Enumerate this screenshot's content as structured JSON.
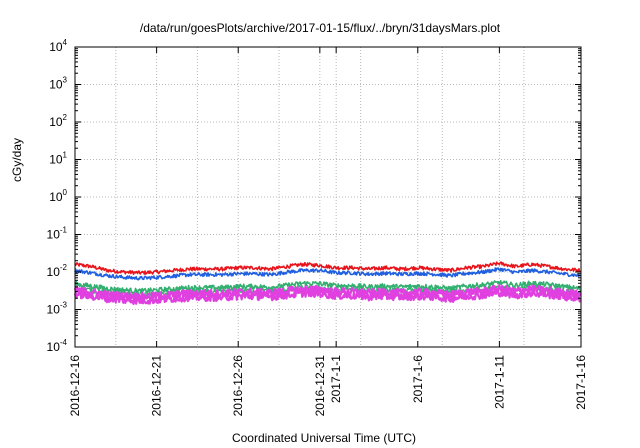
{
  "chart_data": {
    "type": "line",
    "title": "/data/run/goesPlots/archive/2017-01-15/flux/../bryn/31daysMars.plot",
    "xlabel": "Coordinated Universal Time (UTC)",
    "ylabel": "cGy/day",
    "y_scale": "log",
    "ylim": [
      0.0001,
      10000
    ],
    "y_ticks": [
      {
        "value": 0.0001,
        "base": "10",
        "exp": "-4"
      },
      {
        "value": 0.001,
        "base": "10",
        "exp": "-3"
      },
      {
        "value": 0.01,
        "base": "10",
        "exp": "-2"
      },
      {
        "value": 0.1,
        "base": "10",
        "exp": "-1"
      },
      {
        "value": 1,
        "base": "10",
        "exp": "0"
      },
      {
        "value": 10,
        "base": "10",
        "exp": "1"
      },
      {
        "value": 100,
        "base": "10",
        "exp": "2"
      },
      {
        "value": 1000,
        "base": "10",
        "exp": "3"
      },
      {
        "value": 10000,
        "base": "10",
        "exp": "4"
      }
    ],
    "xlim": [
      "2016-12-16",
      "2017-01-16"
    ],
    "x_ticks": [
      {
        "date": "2016-12-16",
        "label": "2016-12-16"
      },
      {
        "date": "2016-12-21",
        "label": "2016-12-21"
      },
      {
        "date": "2016-12-26",
        "label": "2016-12-26"
      },
      {
        "date": "2016-12-31",
        "label": "2016-12-31"
      },
      {
        "date": "2017-01-01",
        "label": "2017-1-1"
      },
      {
        "date": "2017-01-06",
        "label": "2017-1-6"
      },
      {
        "date": "2017-01-11",
        "label": "2017-1-11"
      },
      {
        "date": "2017-01-16",
        "label": "2017-1-16"
      }
    ],
    "grid": true,
    "x": [
      "2016-12-16",
      "2016-12-17",
      "2016-12-18",
      "2016-12-19",
      "2016-12-20",
      "2016-12-21",
      "2016-12-22",
      "2016-12-23",
      "2016-12-24",
      "2016-12-25",
      "2016-12-26",
      "2016-12-27",
      "2016-12-28",
      "2016-12-29",
      "2016-12-30",
      "2016-12-31",
      "2017-01-01",
      "2017-01-02",
      "2017-01-03",
      "2017-01-04",
      "2017-01-05",
      "2017-01-06",
      "2017-01-07",
      "2017-01-08",
      "2017-01-09",
      "2017-01-10",
      "2017-01-11",
      "2017-01-12",
      "2017-01-13",
      "2017-01-14",
      "2017-01-15",
      "2017-01-16"
    ],
    "series": [
      {
        "color": "#e8141c",
        "values": [
          0.016,
          0.014,
          0.011,
          0.01,
          0.0095,
          0.01,
          0.011,
          0.012,
          0.012,
          0.012,
          0.013,
          0.013,
          0.012,
          0.014,
          0.016,
          0.015,
          0.013,
          0.013,
          0.012,
          0.013,
          0.012,
          0.013,
          0.012,
          0.011,
          0.013,
          0.014,
          0.017,
          0.014,
          0.016,
          0.014,
          0.012,
          0.011
        ]
      },
      {
        "color": "#2060e0",
        "values": [
          0.011,
          0.0095,
          0.008,
          0.0072,
          0.0068,
          0.0072,
          0.0078,
          0.0085,
          0.0085,
          0.0085,
          0.009,
          0.009,
          0.0085,
          0.01,
          0.011,
          0.011,
          0.0095,
          0.0095,
          0.0088,
          0.0092,
          0.0088,
          0.0092,
          0.0088,
          0.008,
          0.0092,
          0.01,
          0.012,
          0.0098,
          0.011,
          0.01,
          0.0088,
          0.008
        ]
      },
      {
        "color": "#33b070",
        "values": [
          0.0048,
          0.0042,
          0.0036,
          0.0033,
          0.0031,
          0.0033,
          0.0035,
          0.0038,
          0.0038,
          0.0038,
          0.0041,
          0.0041,
          0.0039,
          0.0044,
          0.005,
          0.0049,
          0.0043,
          0.0043,
          0.004,
          0.0042,
          0.004,
          0.0042,
          0.004,
          0.0036,
          0.0042,
          0.0045,
          0.0052,
          0.0044,
          0.005,
          0.0046,
          0.004,
          0.0036
        ]
      },
      {
        "color": "#e040e0",
        "values": [
          0.0033,
          0.0029,
          0.0025,
          0.0023,
          0.0022,
          0.0023,
          0.0025,
          0.0027,
          0.0027,
          0.0027,
          0.0029,
          0.0029,
          0.0028,
          0.0031,
          0.0035,
          0.0034,
          0.003,
          0.003,
          0.0028,
          0.0029,
          0.0028,
          0.0029,
          0.0028,
          0.0025,
          0.0029,
          0.0031,
          0.0036,
          0.0031,
          0.0035,
          0.0032,
          0.0028,
          0.0025
        ]
      }
    ]
  }
}
